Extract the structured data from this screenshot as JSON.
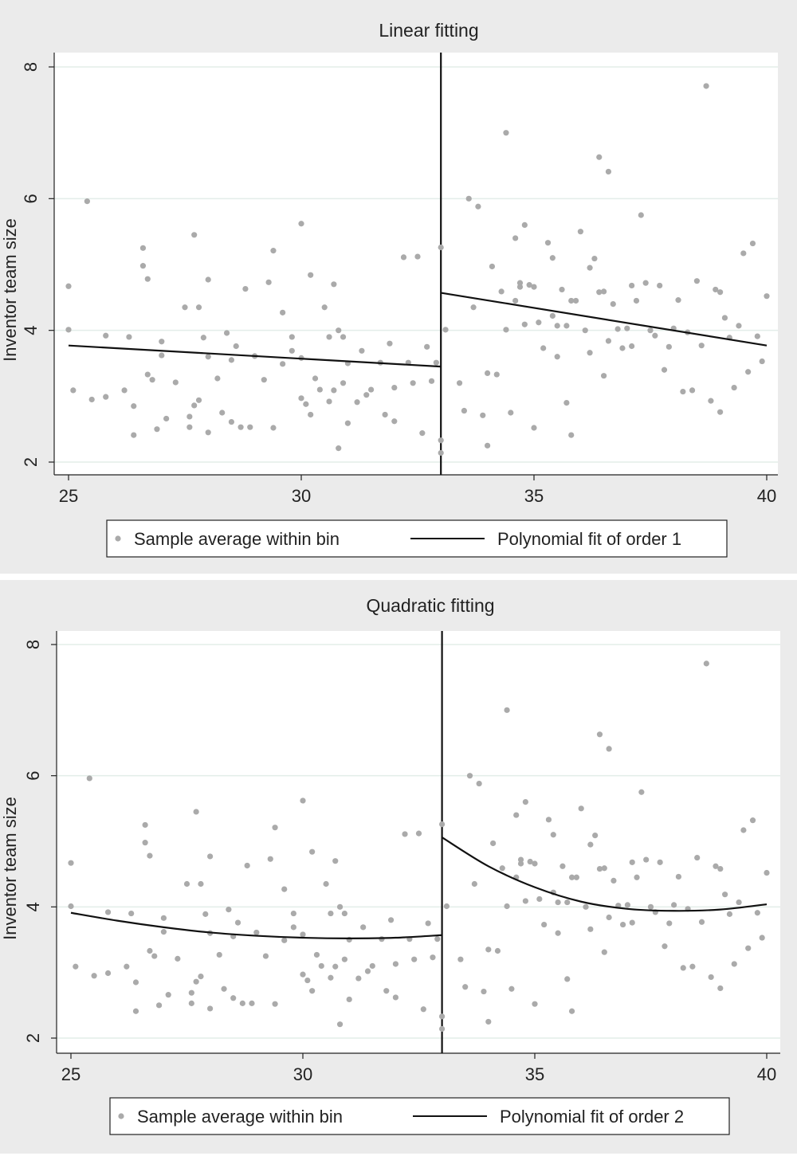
{
  "figure": {
    "panels": [
      {
        "title": "Linear fitting",
        "ylabel": "Inventor team size",
        "xticks": [
          "25",
          "30",
          "35",
          "40"
        ],
        "yticks": [
          "2",
          "4",
          "6",
          "8"
        ],
        "legend": {
          "marker_label": "Sample average within bin",
          "line_label": "Polynomial fit of order 1"
        }
      },
      {
        "title": "Quadratic fitting",
        "ylabel": "Inventor team size",
        "xticks": [
          "25",
          "30",
          "35",
          "40"
        ],
        "yticks": [
          "2",
          "4",
          "6",
          "8"
        ],
        "legend": {
          "marker_label": "Sample average within bin",
          "line_label": "Polynomial fit of order 2"
        }
      }
    ]
  },
  "colors": {
    "panel_bg": "#ebebeb",
    "plot_bg": "#ffffff",
    "grid": "#e3ede9",
    "point": "#aaaaaa",
    "line": "#111111"
  },
  "chart_data": [
    {
      "type": "scatter",
      "title": "Linear fitting",
      "xlabel": "",
      "ylabel": "Inventor team size",
      "xlim": [
        25,
        40
      ],
      "ylim": [
        2,
        8
      ],
      "cutoff": 33,
      "grid": true,
      "legend_position": "bottom",
      "series": [
        {
          "name": "Sample average within bin",
          "kind": "points",
          "x": [
            25.0,
            25.0,
            25.1,
            25.4,
            25.5,
            25.8,
            25.8,
            26.2,
            26.3,
            26.4,
            26.4,
            26.6,
            26.6,
            26.7,
            26.7,
            26.8,
            26.9,
            27.0,
            27.0,
            27.1,
            27.3,
            27.5,
            27.6,
            27.6,
            27.7,
            27.7,
            27.8,
            27.8,
            27.9,
            28.0,
            28.0,
            28.0,
            28.2,
            28.3,
            28.4,
            28.5,
            28.5,
            28.6,
            28.7,
            28.8,
            28.9,
            29.0,
            29.2,
            29.3,
            29.4,
            29.4,
            29.6,
            29.6,
            29.8,
            29.8,
            30.0,
            30.0,
            30.0,
            30.1,
            30.2,
            30.2,
            30.3,
            30.4,
            30.5,
            30.6,
            30.6,
            30.7,
            30.7,
            30.8,
            30.8,
            30.9,
            30.9,
            31.0,
            31.0,
            31.2,
            31.3,
            31.4,
            31.5,
            31.7,
            31.8,
            31.9,
            32.0,
            32.0,
            32.2,
            32.3,
            32.4,
            32.5,
            32.6,
            32.7,
            32.8,
            32.9,
            33.0,
            33.0
          ],
          "y": [
            4.67,
            4.01,
            3.09,
            5.96,
            2.95,
            3.92,
            2.99,
            3.09,
            3.9,
            2.85,
            2.41,
            5.25,
            4.98,
            4.78,
            3.33,
            3.25,
            2.5,
            3.83,
            3.62,
            2.66,
            3.21,
            4.35,
            2.69,
            2.53,
            5.45,
            2.86,
            4.35,
            2.94,
            3.89,
            2.45,
            4.77,
            3.6,
            3.27,
            2.75,
            3.96,
            2.61,
            3.55,
            3.76,
            2.53,
            4.63,
            2.53,
            3.61,
            3.25,
            4.73,
            5.21,
            2.52,
            4.27,
            3.49,
            3.69,
            3.9,
            2.97,
            5.62,
            3.58,
            2.88,
            4.84,
            2.72,
            3.27,
            3.1,
            4.35,
            2.92,
            3.9,
            3.09,
            4.7,
            2.21,
            4.0,
            3.2,
            3.9,
            2.59,
            3.5,
            2.91,
            3.69,
            3.02,
            3.1,
            3.51,
            2.72,
            3.8,
            3.13,
            2.62,
            5.11,
            3.51,
            3.2,
            5.12,
            2.44,
            3.75,
            3.23,
            3.51,
            2.14,
            2.33
          ]
        },
        {
          "name": "Sample average within bin",
          "kind": "points",
          "x": [
            33.0,
            33.1,
            33.4,
            33.5,
            33.6,
            33.7,
            33.8,
            33.9,
            34.0,
            34.0,
            34.1,
            34.2,
            34.3,
            34.4,
            34.4,
            34.5,
            34.6,
            34.6,
            34.7,
            34.7,
            34.8,
            34.8,
            34.9,
            35.0,
            35.0,
            35.1,
            35.2,
            35.3,
            35.4,
            35.4,
            35.5,
            35.5,
            35.6,
            35.7,
            35.7,
            35.8,
            35.8,
            35.9,
            36.0,
            36.1,
            36.2,
            36.2,
            36.3,
            36.4,
            36.4,
            36.5,
            36.5,
            36.6,
            36.6,
            36.7,
            36.8,
            36.9,
            37.0,
            37.1,
            37.1,
            37.2,
            37.3,
            37.4,
            37.5,
            37.6,
            37.7,
            37.8,
            37.9,
            38.0,
            38.1,
            38.2,
            38.3,
            38.4,
            38.5,
            38.6,
            38.7,
            38.8,
            38.9,
            39.0,
            39.0,
            39.1,
            39.2,
            39.3,
            39.4,
            39.5,
            39.6,
            39.7,
            39.8,
            39.9,
            40.0
          ],
          "y": [
            5.26,
            4.01,
            3.2,
            2.78,
            6.0,
            4.35,
            5.88,
            2.71,
            3.35,
            2.25,
            4.97,
            3.33,
            4.59,
            7.0,
            4.01,
            2.75,
            5.4,
            4.45,
            4.72,
            4.66,
            5.6,
            4.09,
            4.69,
            4.66,
            2.52,
            4.12,
            3.73,
            5.33,
            5.1,
            4.22,
            3.6,
            4.07,
            4.62,
            2.9,
            4.07,
            4.45,
            2.41,
            4.45,
            5.5,
            4.0,
            4.95,
            3.66,
            5.09,
            6.63,
            4.58,
            4.59,
            3.31,
            3.84,
            6.41,
            4.4,
            4.02,
            3.73,
            4.03,
            4.68,
            3.76,
            4.45,
            5.75,
            4.72,
            4.0,
            3.92,
            4.68,
            3.4,
            3.75,
            4.03,
            4.46,
            3.07,
            3.97,
            3.09,
            4.75,
            3.77,
            7.71,
            2.93,
            4.62,
            4.58,
            2.76,
            4.19,
            3.89,
            3.13,
            4.07,
            5.17,
            3.37,
            5.32,
            3.91,
            3.53,
            4.52
          ]
        },
        {
          "name": "Polynomial fit of order 1",
          "kind": "line",
          "x": [
            25,
            33
          ],
          "y": [
            3.77,
            3.45
          ]
        },
        {
          "name": "Polynomial fit of order 1",
          "kind": "line",
          "x": [
            33,
            40
          ],
          "y": [
            4.57,
            3.77
          ]
        }
      ]
    },
    {
      "type": "scatter",
      "title": "Quadratic fitting",
      "xlabel": "",
      "ylabel": "Inventor team size",
      "xlim": [
        25,
        40
      ],
      "ylim": [
        2,
        8
      ],
      "cutoff": 33,
      "grid": true,
      "legend_position": "bottom",
      "series": [
        {
          "name": "Sample average within bin",
          "kind": "points",
          "x": [
            25.0,
            25.0,
            25.1,
            25.4,
            25.5,
            25.8,
            25.8,
            26.2,
            26.3,
            26.4,
            26.4,
            26.6,
            26.6,
            26.7,
            26.7,
            26.8,
            26.9,
            27.0,
            27.0,
            27.1,
            27.3,
            27.5,
            27.6,
            27.6,
            27.7,
            27.7,
            27.8,
            27.8,
            27.9,
            28.0,
            28.0,
            28.0,
            28.2,
            28.3,
            28.4,
            28.5,
            28.5,
            28.6,
            28.7,
            28.8,
            28.9,
            29.0,
            29.2,
            29.3,
            29.4,
            29.4,
            29.6,
            29.6,
            29.8,
            29.8,
            30.0,
            30.0,
            30.0,
            30.1,
            30.2,
            30.2,
            30.3,
            30.4,
            30.5,
            30.6,
            30.6,
            30.7,
            30.7,
            30.8,
            30.8,
            30.9,
            30.9,
            31.0,
            31.0,
            31.2,
            31.3,
            31.4,
            31.5,
            31.7,
            31.8,
            31.9,
            32.0,
            32.0,
            32.2,
            32.3,
            32.4,
            32.5,
            32.6,
            32.7,
            32.8,
            32.9,
            33.0,
            33.0
          ],
          "y": [
            4.67,
            4.01,
            3.09,
            5.96,
            2.95,
            3.92,
            2.99,
            3.09,
            3.9,
            2.85,
            2.41,
            5.25,
            4.98,
            4.78,
            3.33,
            3.25,
            2.5,
            3.83,
            3.62,
            2.66,
            3.21,
            4.35,
            2.69,
            2.53,
            5.45,
            2.86,
            4.35,
            2.94,
            3.89,
            2.45,
            4.77,
            3.6,
            3.27,
            2.75,
            3.96,
            2.61,
            3.55,
            3.76,
            2.53,
            4.63,
            2.53,
            3.61,
            3.25,
            4.73,
            5.21,
            2.52,
            4.27,
            3.49,
            3.69,
            3.9,
            2.97,
            5.62,
            3.58,
            2.88,
            4.84,
            2.72,
            3.27,
            3.1,
            4.35,
            2.92,
            3.9,
            3.09,
            4.7,
            2.21,
            4.0,
            3.2,
            3.9,
            2.59,
            3.5,
            2.91,
            3.69,
            3.02,
            3.1,
            3.51,
            2.72,
            3.8,
            3.13,
            2.62,
            5.11,
            3.51,
            3.2,
            5.12,
            2.44,
            3.75,
            3.23,
            3.51,
            2.14,
            2.33
          ]
        },
        {
          "name": "Sample average within bin",
          "kind": "points",
          "x": [
            33.0,
            33.1,
            33.4,
            33.5,
            33.6,
            33.7,
            33.8,
            33.9,
            34.0,
            34.0,
            34.1,
            34.2,
            34.3,
            34.4,
            34.4,
            34.5,
            34.6,
            34.6,
            34.7,
            34.7,
            34.8,
            34.8,
            34.9,
            35.0,
            35.0,
            35.1,
            35.2,
            35.3,
            35.4,
            35.4,
            35.5,
            35.5,
            35.6,
            35.7,
            35.7,
            35.8,
            35.8,
            35.9,
            36.0,
            36.1,
            36.2,
            36.2,
            36.3,
            36.4,
            36.4,
            36.5,
            36.5,
            36.6,
            36.6,
            36.7,
            36.8,
            36.9,
            37.0,
            37.1,
            37.1,
            37.2,
            37.3,
            37.4,
            37.5,
            37.6,
            37.7,
            37.8,
            37.9,
            38.0,
            38.1,
            38.2,
            38.3,
            38.4,
            38.5,
            38.6,
            38.7,
            38.8,
            38.9,
            39.0,
            39.0,
            39.1,
            39.2,
            39.3,
            39.4,
            39.5,
            39.6,
            39.7,
            39.8,
            39.9,
            40.0
          ],
          "y": [
            5.26,
            4.01,
            3.2,
            2.78,
            6.0,
            4.35,
            5.88,
            2.71,
            3.35,
            2.25,
            4.97,
            3.33,
            4.59,
            7.0,
            4.01,
            2.75,
            5.4,
            4.45,
            4.72,
            4.66,
            5.6,
            4.09,
            4.69,
            4.66,
            2.52,
            4.12,
            3.73,
            5.33,
            5.1,
            4.22,
            3.6,
            4.07,
            4.62,
            2.9,
            4.07,
            4.45,
            2.41,
            4.45,
            5.5,
            4.0,
            4.95,
            3.66,
            5.09,
            6.63,
            4.58,
            4.59,
            3.31,
            3.84,
            6.41,
            4.4,
            4.02,
            3.73,
            4.03,
            4.68,
            3.76,
            4.45,
            5.75,
            4.72,
            4.0,
            3.92,
            4.68,
            3.4,
            3.75,
            4.03,
            4.46,
            3.07,
            3.97,
            3.09,
            4.75,
            3.77,
            7.71,
            2.93,
            4.62,
            4.58,
            2.76,
            4.19,
            3.89,
            3.13,
            4.07,
            5.17,
            3.37,
            5.32,
            3.91,
            3.53,
            4.52
          ]
        },
        {
          "name": "Polynomial fit of order 2",
          "kind": "line",
          "x": [
            25,
            26,
            27,
            28,
            29,
            30,
            31,
            32,
            33
          ],
          "y": [
            3.91,
            3.79,
            3.69,
            3.61,
            3.56,
            3.53,
            3.52,
            3.53,
            3.57
          ]
        },
        {
          "name": "Polynomial fit of order 2",
          "kind": "line",
          "x": [
            33,
            34,
            35,
            36,
            37,
            38,
            39,
            40
          ],
          "y": [
            5.06,
            4.62,
            4.3,
            4.08,
            3.97,
            3.94,
            3.96,
            4.04
          ]
        }
      ]
    }
  ]
}
